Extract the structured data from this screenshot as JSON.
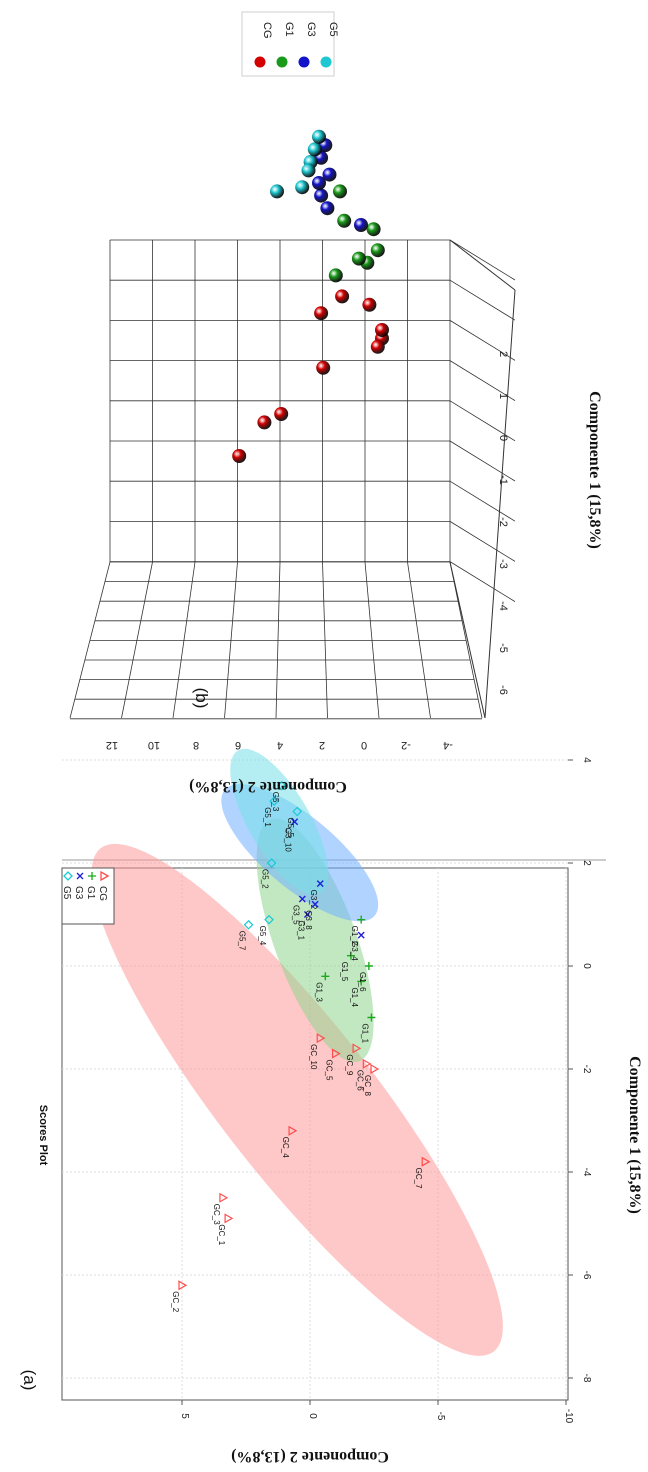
{
  "chart_data": [
    {
      "type": "scatter",
      "panel_label": "(a)",
      "title": "Scores Plot",
      "xlabel": "Componente 1 (15,8%)",
      "ylabel": "Componente 2 (13,8%)",
      "xlim": [
        -8,
        4
      ],
      "ylim": [
        -10,
        10
      ],
      "x_ticks": [
        -8,
        -6,
        -4,
        -2,
        0,
        2,
        4
      ],
      "y_ticks": [
        -10,
        -5,
        0,
        5
      ],
      "grid": true,
      "legend_position": "top-right",
      "series": [
        {
          "name": "CG",
          "color": "#ff4d4d",
          "marker": "triangle",
          "ellipse": {
            "cx": -2.6,
            "cy": 0.5,
            "rx": 6.2,
            "ry": 3.0,
            "angle": -38,
            "fill": "#ff9a9a"
          },
          "points": [
            {
              "x": -6.2,
              "y": 5.0,
              "label": "GC_2"
            },
            {
              "x": -4.9,
              "y": 3.2,
              "label": "GC_1"
            },
            {
              "x": -4.5,
              "y": 3.4,
              "label": "GC_3"
            },
            {
              "x": -3.2,
              "y": 0.7,
              "label": "GC_4"
            },
            {
              "x": -3.8,
              "y": -4.5,
              "label": "GC_7"
            },
            {
              "x": -1.6,
              "y": -1.8,
              "label": "GC_9"
            },
            {
              "x": -2.0,
              "y": -2.5,
              "label": "GC_8"
            },
            {
              "x": -1.9,
              "y": -2.2,
              "label": "GC_6"
            },
            {
              "x": -1.7,
              "y": -1.0,
              "label": "GC_5"
            },
            {
              "x": -1.4,
              "y": -0.4,
              "label": "GC_10"
            }
          ]
        },
        {
          "name": "G1",
          "color": "#1aaa1a",
          "marker": "plus",
          "ellipse": {
            "cx": 0.5,
            "cy": -0.2,
            "rx": 2.5,
            "ry": 1.6,
            "angle": -20,
            "fill": "#8fd68f"
          },
          "points": [
            {
              "x": 0.9,
              "y": -2.0,
              "label": "G1_2"
            },
            {
              "x": -0.3,
              "y": -2.0,
              "label": "G1_4"
            },
            {
              "x": -1.0,
              "y": -2.4,
              "label": "G1_1"
            },
            {
              "x": -0.2,
              "y": -0.6,
              "label": "G1_3"
            },
            {
              "x": 0.2,
              "y": -1.6,
              "label": "G1_5"
            },
            {
              "x": 0.0,
              "y": -2.3,
              "label": "G1_6"
            }
          ]
        },
        {
          "name": "G3",
          "color": "#1f1fd6",
          "marker": "x",
          "ellipse": {
            "cx": 2.2,
            "cy": 0.4,
            "rx": 1.9,
            "ry": 1.4,
            "angle": -50,
            "fill": "#6fb0ff"
          },
          "points": [
            {
              "x": 1.0,
              "y": 0.1,
              "label": "G3_1"
            },
            {
              "x": 1.6,
              "y": -0.4,
              "label": "G3_2"
            },
            {
              "x": 0.6,
              "y": -2.0,
              "label": "G3_4"
            },
            {
              "x": 2.8,
              "y": 0.6,
              "label": "G3_10"
            },
            {
              "x": 1.3,
              "y": 0.3,
              "label": "G3_5"
            },
            {
              "x": 1.2,
              "y": -0.2,
              "label": "G3_8"
            }
          ]
        },
        {
          "name": "G5",
          "color": "#17c9d6",
          "marker": "diamond",
          "ellipse": {
            "cx": 2.8,
            "cy": 1.2,
            "rx": 1.6,
            "ry": 1.2,
            "angle": -30,
            "fill": "#77e0ea"
          },
          "points": [
            {
              "x": 0.8,
              "y": 2.4,
              "label": "G5_7"
            },
            {
              "x": 0.9,
              "y": 1.6,
              "label": "G5_4"
            },
            {
              "x": 2.0,
              "y": 1.5,
              "label": "G5_2"
            },
            {
              "x": 3.2,
              "y": 1.4,
              "label": "G5_1"
            },
            {
              "x": 3.5,
              "y": 1.1,
              "label": "G5_3"
            },
            {
              "x": 3.0,
              "y": 0.5,
              "label": "G5_5"
            }
          ]
        }
      ]
    },
    {
      "type": "scatter",
      "panel_label": "(b)",
      "xlabel": "Componente 1 (15,8%)",
      "ylabel": "Componente 2 (13,8%)",
      "x_ticks": [
        -6,
        -5,
        -4,
        -3,
        -2,
        -1,
        0,
        1,
        2
      ],
      "y_ticks": [
        -4,
        -2,
        0,
        2,
        4,
        6,
        8,
        10,
        12
      ],
      "legend_position": "top-right",
      "series": [
        {
          "name": "CG",
          "color": "#d40000",
          "points": [
            {
              "x": -4.0,
              "y": 4.8
            },
            {
              "x": -3.2,
              "y": 3.6
            },
            {
              "x": -3.0,
              "y": 2.8
            },
            {
              "x": -1.9,
              "y": 0.8
            },
            {
              "x": -0.6,
              "y": 0.9
            },
            {
              "x": -0.2,
              "y": -0.1
            },
            {
              "x": -0.4,
              "y": -1.4
            },
            {
              "x": -1.2,
              "y": -2.0
            },
            {
              "x": -1.4,
              "y": -1.8
            },
            {
              "x": -1.0,
              "y": -2.0
            }
          ]
        },
        {
          "name": "G1",
          "color": "#1a9a1a",
          "points": [
            {
              "x": 0.3,
              "y": 0.2
            },
            {
              "x": 0.6,
              "y": -1.3
            },
            {
              "x": 0.7,
              "y": -0.9
            },
            {
              "x": 0.9,
              "y": -1.8
            },
            {
              "x": 1.4,
              "y": -1.6
            },
            {
              "x": 1.6,
              "y": -0.2
            },
            {
              "x": 2.3,
              "y": 0.0
            }
          ]
        },
        {
          "name": "G3",
          "color": "#1414c8",
          "points": [
            {
              "x": 1.9,
              "y": 0.6
            },
            {
              "x": 2.2,
              "y": 0.9
            },
            {
              "x": 2.5,
              "y": 1.0
            },
            {
              "x": 1.5,
              "y": -1.0
            },
            {
              "x": 3.1,
              "y": 0.9
            },
            {
              "x": 3.4,
              "y": 0.7
            },
            {
              "x": 2.7,
              "y": 0.5
            }
          ]
        },
        {
          "name": "G5",
          "color": "#1ec8d2",
          "points": [
            {
              "x": 2.3,
              "y": 3.0
            },
            {
              "x": 2.4,
              "y": 1.8
            },
            {
              "x": 3.0,
              "y": 1.4
            },
            {
              "x": 3.3,
              "y": 1.2
            },
            {
              "x": 3.6,
              "y": 1.0
            },
            {
              "x": 2.8,
              "y": 1.5
            }
          ]
        }
      ]
    }
  ]
}
